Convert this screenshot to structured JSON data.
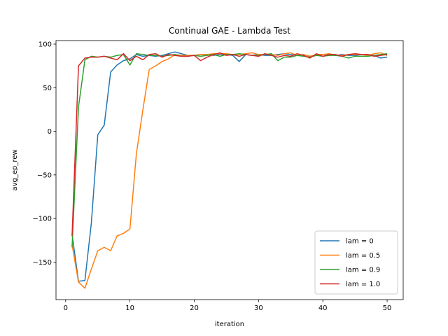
{
  "chart_data": {
    "type": "line",
    "title": "Continual GAE - Lambda Test",
    "xlabel": "iteration",
    "ylabel": "avg_ep_rew",
    "xlim": [
      -1.5,
      52.5
    ],
    "ylim": [
      -193,
      104
    ],
    "xticks": [
      0,
      10,
      20,
      30,
      40,
      50
    ],
    "yticks": [
      -150,
      -100,
      -50,
      0,
      50,
      100
    ],
    "grid": false,
    "legend_position": "lower-right",
    "x": [
      1,
      2,
      3,
      4,
      5,
      6,
      7,
      8,
      9,
      10,
      11,
      12,
      13,
      14,
      15,
      16,
      17,
      18,
      19,
      20,
      21,
      22,
      23,
      24,
      25,
      26,
      27,
      28,
      29,
      30,
      31,
      32,
      33,
      34,
      35,
      36,
      37,
      38,
      39,
      40,
      41,
      42,
      43,
      44,
      45,
      46,
      47,
      48,
      49,
      50
    ],
    "series": [
      {
        "name": "lam = 0",
        "color": "#1f77b4",
        "values": [
          -118,
          -172,
          -171,
          -105,
          -4,
          7,
          68,
          76,
          81,
          83,
          88,
          86,
          87,
          86,
          87,
          89,
          91,
          89,
          87,
          87,
          88,
          88,
          87,
          88,
          88,
          87,
          80,
          88,
          87,
          88,
          87,
          87,
          88,
          89,
          88,
          87,
          88,
          86,
          87,
          88,
          88,
          87,
          88,
          87,
          87,
          88,
          88,
          87,
          84,
          85
        ]
      },
      {
        "name": "lam = 0.5",
        "color": "#ff7f0e",
        "values": [
          -130,
          -173,
          -180,
          -158,
          -137,
          -133,
          -137,
          -120,
          -117,
          -112,
          -26,
          24,
          71,
          75,
          80,
          83,
          88,
          87,
          87,
          87,
          88,
          88,
          89,
          89,
          89,
          88,
          88,
          89,
          90,
          88,
          88,
          88,
          87,
          89,
          90,
          87,
          88,
          86,
          88,
          88,
          89,
          87,
          87,
          88,
          88,
          88,
          87,
          89,
          90,
          87
        ]
      },
      {
        "name": "lam = 0.9",
        "color": "#2ca02c",
        "values": [
          -133,
          28,
          82,
          86,
          85,
          86,
          85,
          87,
          88,
          76,
          89,
          88,
          87,
          87,
          86,
          87,
          88,
          86,
          86,
          87,
          86,
          87,
          88,
          86,
          88,
          88,
          89,
          88,
          87,
          87,
          88,
          89,
          81,
          85,
          85,
          87,
          86,
          85,
          87,
          86,
          87,
          87,
          86,
          84,
          86,
          86,
          86,
          87,
          88,
          89
        ]
      },
      {
        "name": "lam = 1.0",
        "color": "#d62728",
        "values": [
          -120,
          75,
          84,
          85,
          85,
          86,
          84,
          82,
          89,
          81,
          86,
          82,
          88,
          89,
          85,
          88,
          87,
          86,
          86,
          87,
          81,
          85,
          88,
          90,
          87,
          88,
          86,
          88,
          87,
          86,
          89,
          87,
          85,
          87,
          86,
          89,
          87,
          84,
          89,
          86,
          88,
          88,
          86,
          88,
          89,
          88,
          88,
          86,
          87,
          88
        ]
      }
    ]
  }
}
